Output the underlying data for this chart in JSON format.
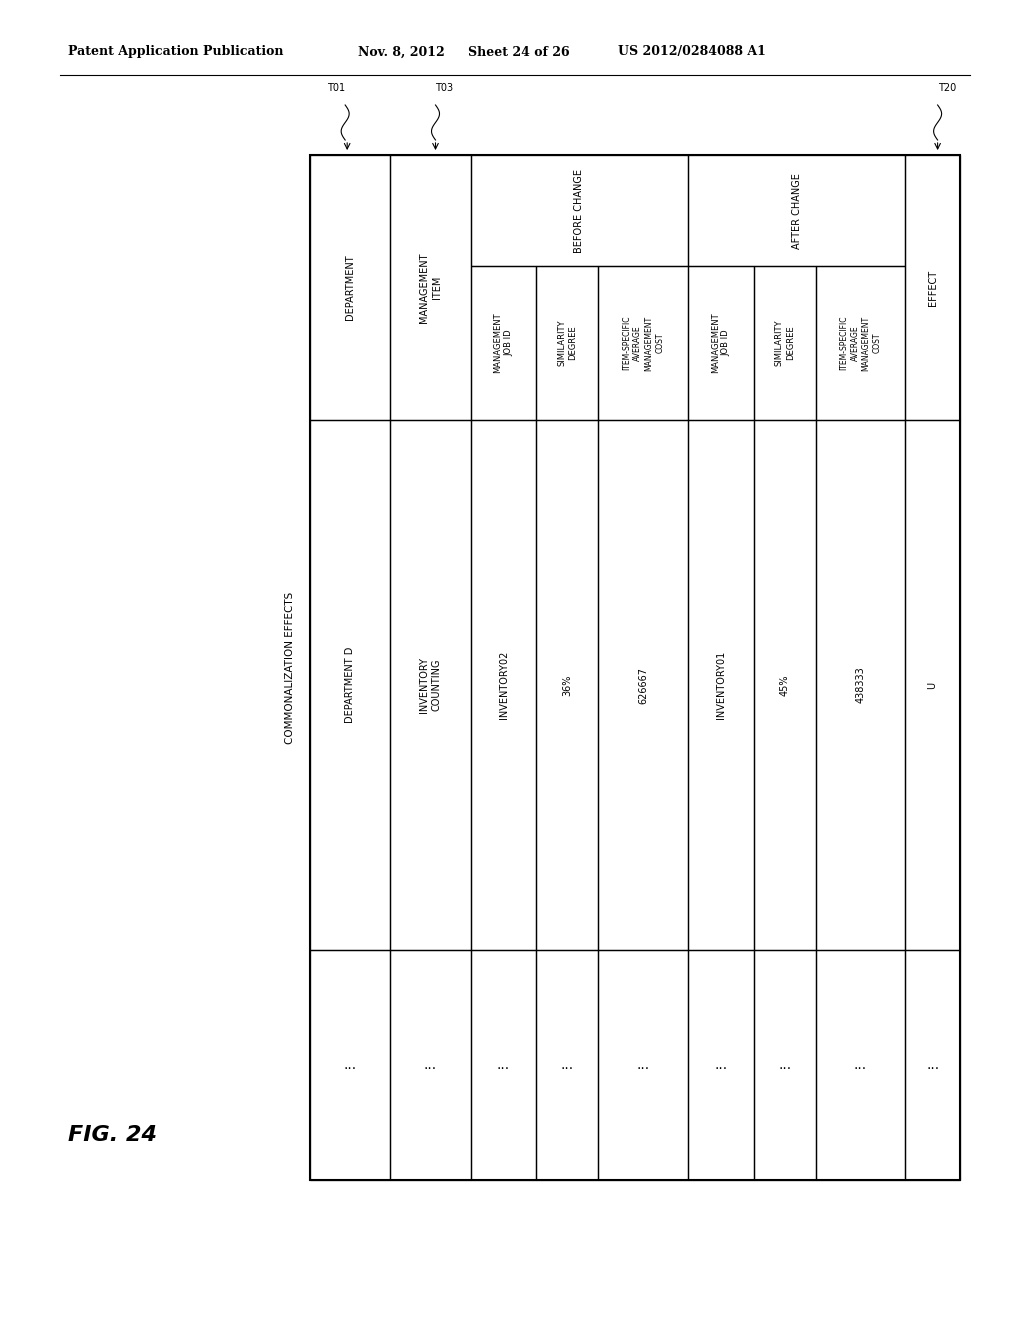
{
  "header_text": "Patent Application Publication",
  "header_date": "Nov. 8, 2012",
  "header_sheet": "Sheet 24 of 26",
  "header_patent": "US 2012/0284088 A1",
  "fig_label": "FIG. 24",
  "table": {
    "outer_label": "COMMONALIZATION EFFECTS",
    "t01_label": "T01",
    "t03_label": "T03",
    "t20_label": "T20",
    "col1_header": "DEPARTMENT",
    "col2_header": "MANAGEMENT\nITEM",
    "before_change_label": "BEFORE CHANGE",
    "after_change_label": "AFTER CHANGE",
    "before_mgmt_job_id": "MANAGEMENT\nJOB ID",
    "before_similarity": "SIMILARITY\nDEGREE",
    "before_item_avg": "ITEM-SPECIFIC\nAVERAGE\nMANAGEMENT\nCOST",
    "after_mgmt_job_id": "MANAGEMENT\nJOB ID",
    "after_similarity": "SIMILARITY\nDEGREE",
    "after_item_avg": "ITEM-SPECIFIC\nAVERAGE\nMANAGEMENT\nCOST",
    "effect_label": "EFFECT",
    "row1_col1": "DEPARTMENT D",
    "row1_col2": "INVENTORY\nCOUNTING",
    "row1_before_id": "INVENTORY02",
    "row1_before_sim": "36%",
    "row1_before_cost": "626667",
    "row1_after_id": "INVENTORY01",
    "row1_after_sim": "45%",
    "row1_after_cost": "438333",
    "row1_effect": "U",
    "dots": "..."
  },
  "bg_color": "#ffffff",
  "line_color": "#000000",
  "text_color": "#000000",
  "font_size_header": 9,
  "font_size_cell": 6.5,
  "font_size_fig": 16,
  "font_size_label": 7
}
